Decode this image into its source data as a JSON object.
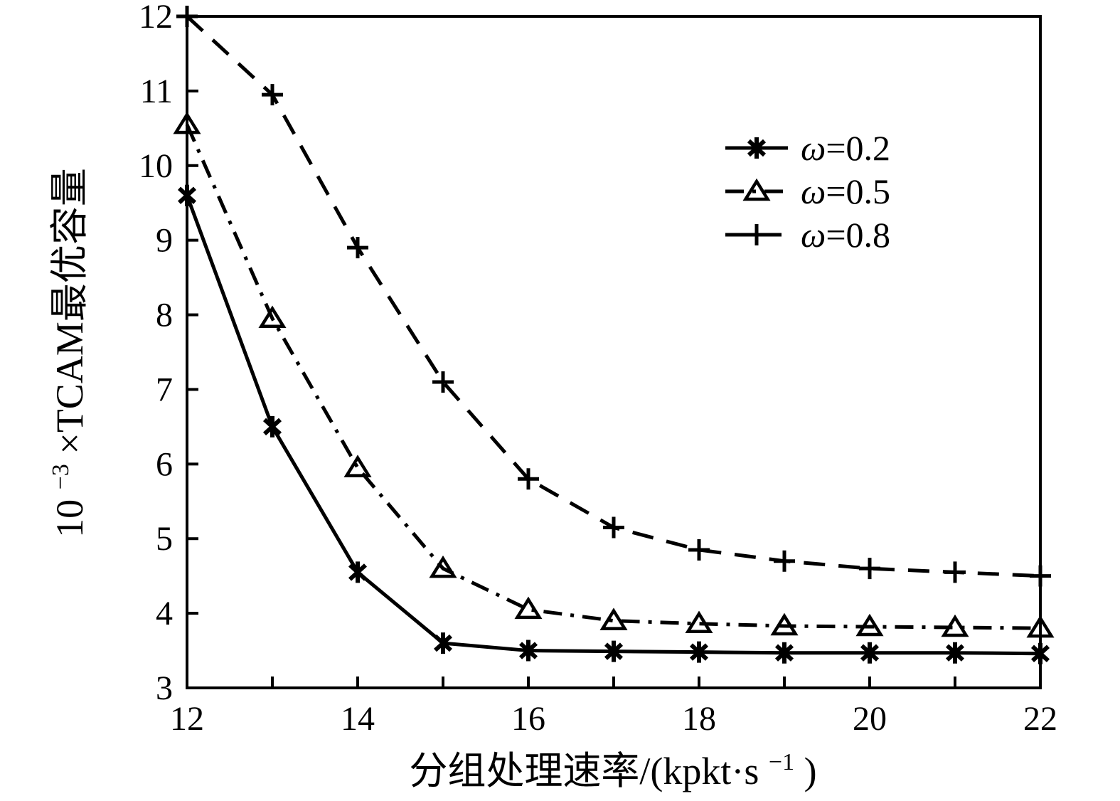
{
  "figure": {
    "background": "#ffffff",
    "ink_color": "#000000"
  },
  "chart_data": {
    "type": "line",
    "x": [
      12,
      13,
      14,
      15,
      16,
      17,
      18,
      19,
      20,
      21,
      22
    ],
    "series": [
      {
        "name": "ω=0.2",
        "line_style": "solid",
        "marker": "asterisk",
        "color": "#000000",
        "values": [
          9.6,
          6.5,
          4.55,
          3.6,
          3.5,
          3.49,
          3.48,
          3.47,
          3.47,
          3.47,
          3.46
        ]
      },
      {
        "name": "ω=0.5",
        "line_style": "dash-dot",
        "marker": "triangle-up-open",
        "color": "#000000",
        "values": [
          10.55,
          7.95,
          5.95,
          4.6,
          4.05,
          3.9,
          3.86,
          3.83,
          3.82,
          3.81,
          3.8
        ]
      },
      {
        "name": "ω=0.8",
        "line_style": "dashed",
        "marker": "plus",
        "color": "#000000",
        "values": [
          12.0,
          10.95,
          8.9,
          7.1,
          5.8,
          5.15,
          4.85,
          4.7,
          4.6,
          4.55,
          4.5
        ]
      }
    ],
    "title": "",
    "xlabel": "分组处理速率/(kpkt·s⁻¹)",
    "xlabel_parts": {
      "pre": "分组处理速率/(kpkt·s",
      "sup": "−1",
      "post": ")"
    },
    "ylabel": "10⁻³×TCAM最优容量",
    "ylabel_parts": {
      "base": "10",
      "sup": "−3",
      "rest": "×TCAM最优容量"
    },
    "xlim": [
      12,
      22
    ],
    "ylim": [
      3,
      12
    ],
    "x_ticks": [
      12,
      13,
      14,
      15,
      16,
      17,
      18,
      19,
      20,
      21,
      22
    ],
    "x_labeled_ticks": [
      12,
      14,
      16,
      18,
      20,
      22
    ],
    "y_ticks": [
      3,
      4,
      5,
      6,
      7,
      8,
      9,
      10,
      11,
      12
    ],
    "y_labeled_ticks": [
      3,
      4,
      5,
      6,
      7,
      8,
      9,
      10,
      11,
      12
    ],
    "grid": false,
    "legend_position": "upper-right-inside",
    "legend_has_border": false
  }
}
